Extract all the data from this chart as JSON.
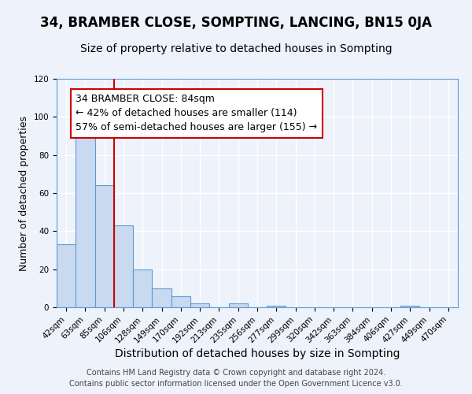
{
  "title": "34, BRAMBER CLOSE, SOMPTING, LANCING, BN15 0JA",
  "subtitle": "Size of property relative to detached houses in Sompting",
  "xlabel": "Distribution of detached houses by size in Sompting",
  "ylabel": "Number of detached properties",
  "bin_labels": [
    "42sqm",
    "63sqm",
    "85sqm",
    "106sqm",
    "128sqm",
    "149sqm",
    "170sqm",
    "192sqm",
    "213sqm",
    "235sqm",
    "256sqm",
    "277sqm",
    "299sqm",
    "320sqm",
    "342sqm",
    "363sqm",
    "384sqm",
    "406sqm",
    "427sqm",
    "449sqm",
    "470sqm"
  ],
  "bar_values": [
    33,
    90,
    64,
    43,
    20,
    10,
    6,
    2,
    0,
    2,
    0,
    1,
    0,
    0,
    0,
    0,
    0,
    0,
    1,
    0,
    0
  ],
  "bar_color": "#c9d9f0",
  "bar_edge_color": "#5b9bd5",
  "vline_x_index": 2,
  "vline_color": "#cc0000",
  "annotation_line1": "34 BRAMBER CLOSE: 84sqm",
  "annotation_line2": "← 42% of detached houses are smaller (114)",
  "annotation_line3": "57% of semi-detached houses are larger (155) →",
  "annotation_box_color": "#ffffff",
  "annotation_box_edge": "#cc0000",
  "ylim": [
    0,
    120
  ],
  "yticks": [
    0,
    20,
    40,
    60,
    80,
    100,
    120
  ],
  "footer1": "Contains HM Land Registry data © Crown copyright and database right 2024.",
  "footer2": "Contains public sector information licensed under the Open Government Licence v3.0.",
  "background_color": "#eef2fb",
  "grid_color": "#ffffff",
  "title_fontsize": 12,
  "subtitle_fontsize": 10,
  "xlabel_fontsize": 10,
  "ylabel_fontsize": 9,
  "tick_fontsize": 7.5,
  "annotation_fontsize": 9,
  "footer_fontsize": 7
}
